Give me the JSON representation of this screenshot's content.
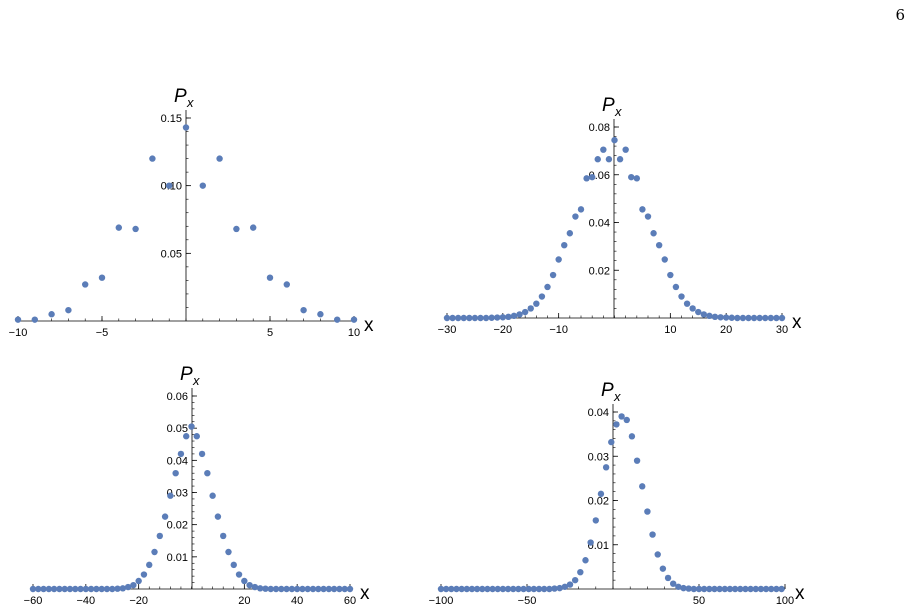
{
  "page_number": "6",
  "chart_data": [
    {
      "type": "scatter",
      "xlabel": "x",
      "ylabel": "P",
      "ylabel_subscript": "x",
      "color": "#5b7db8",
      "xlim": [
        -10,
        10
      ],
      "ylim": [
        0,
        0.15
      ],
      "x_ticks": [
        -10,
        -5,
        5,
        10
      ],
      "x_tick_labels": [
        "−10",
        "−5",
        "5",
        "10"
      ],
      "y_ticks": [
        0.05,
        0.1,
        0.15
      ],
      "y_tick_labels": [
        "0.05",
        "0.10",
        "0.15"
      ],
      "x": [
        -10,
        -9,
        -8,
        -7,
        -6,
        -5,
        -4,
        -3,
        -2,
        -1,
        0,
        1,
        2,
        3,
        4,
        5,
        6,
        7,
        8,
        9,
        10
      ],
      "y": [
        0.001,
        0.001,
        0.005,
        0.008,
        0.027,
        0.032,
        0.069,
        0.068,
        0.12,
        0.1,
        0.143,
        0.1,
        0.12,
        0.068,
        0.069,
        0.032,
        0.027,
        0.008,
        0.005,
        0.001,
        0.001
      ]
    },
    {
      "type": "scatter",
      "xlabel": "x",
      "ylabel": "P",
      "ylabel_subscript": "x",
      "color": "#5b7db8",
      "xlim": [
        -30,
        30
      ],
      "ylim": [
        0,
        0.08
      ],
      "x_ticks": [
        -30,
        -20,
        -10,
        10,
        20,
        30
      ],
      "x_tick_labels": [
        "−30",
        "−20",
        "−10",
        "10",
        "20",
        "30"
      ],
      "y_ticks": [
        0.02,
        0.04,
        0.06,
        0.08
      ],
      "y_tick_labels": [
        "0.02",
        "0.04",
        "0.06",
        "0.08"
      ],
      "x": [
        -30,
        -29,
        -28,
        -27,
        -26,
        -25,
        -24,
        -23,
        -22,
        -21,
        -20,
        -19,
        -18,
        -17,
        -16,
        -15,
        -14,
        -13,
        -12,
        -11,
        -10,
        -9,
        -8,
        -7,
        -6,
        -5,
        -4,
        -3,
        -2,
        -1,
        0,
        1,
        2,
        3,
        4,
        5,
        6,
        7,
        8,
        9,
        10,
        11,
        12,
        13,
        14,
        15,
        16,
        17,
        18,
        19,
        20,
        21,
        22,
        23,
        24,
        25,
        26,
        27,
        28,
        29,
        30
      ],
      "y": [
        0,
        0,
        0,
        0,
        0,
        0,
        0,
        0,
        0.0001,
        0.0002,
        0.0003,
        0.0005,
        0.0009,
        0.0015,
        0.0025,
        0.004,
        0.006,
        0.009,
        0.013,
        0.018,
        0.0245,
        0.0305,
        0.0355,
        0.0425,
        0.0455,
        0.0585,
        0.059,
        0.0665,
        0.0705,
        0.0665,
        0.0745,
        0.0665,
        0.0705,
        0.059,
        0.0585,
        0.0455,
        0.0425,
        0.0355,
        0.0305,
        0.0245,
        0.018,
        0.013,
        0.009,
        0.006,
        0.004,
        0.0025,
        0.0015,
        0.0009,
        0.0005,
        0.0003,
        0.0002,
        0.0001,
        0,
        0,
        0,
        0,
        0,
        0,
        0,
        0,
        0
      ]
    },
    {
      "type": "scatter",
      "xlabel": "x",
      "ylabel": "P",
      "ylabel_subscript": "x",
      "color": "#5b7db8",
      "xlim": [
        -60,
        60
      ],
      "ylim": [
        0,
        0.06
      ],
      "x_ticks": [
        -60,
        -40,
        -20,
        20,
        40,
        60
      ],
      "x_tick_labels": [
        "−60",
        "−40",
        "−20",
        "20",
        "40",
        "60"
      ],
      "y_ticks": [
        0.01,
        0.02,
        0.03,
        0.04,
        0.05,
        0.06
      ],
      "y_tick_labels": [
        "0.01",
        "0.02",
        "0.03",
        "0.04",
        "0.05",
        "0.06"
      ],
      "x": [
        -60,
        -58,
        -56,
        -54,
        -52,
        -50,
        -48,
        -46,
        -44,
        -42,
        -40,
        -38,
        -36,
        -34,
        -32,
        -30,
        -28,
        -26,
        -24,
        -22,
        -20,
        -18,
        -16,
        -14,
        -12,
        -10,
        -8,
        -6,
        -4,
        -2,
        0,
        2,
        4,
        6,
        8,
        10,
        12,
        14,
        16,
        18,
        20,
        22,
        24,
        26,
        28,
        30,
        32,
        34,
        36,
        38,
        40,
        42,
        44,
        46,
        48,
        50,
        52,
        54,
        56,
        58,
        60
      ],
      "y": [
        0,
        0,
        0,
        0,
        0,
        0,
        0,
        0,
        0,
        0,
        0,
        0,
        0,
        0,
        0,
        0,
        0.0001,
        0.0002,
        0.0006,
        0.0012,
        0.0025,
        0.0045,
        0.0075,
        0.0115,
        0.0165,
        0.0225,
        0.029,
        0.036,
        0.042,
        0.0475,
        0.0505,
        0.0475,
        0.042,
        0.036,
        0.029,
        0.0225,
        0.0165,
        0.0115,
        0.0075,
        0.0045,
        0.0025,
        0.0012,
        0.0006,
        0.0002,
        0.0001,
        0,
        0,
        0,
        0,
        0,
        0,
        0,
        0,
        0,
        0,
        0,
        0,
        0,
        0,
        0,
        0
      ]
    },
    {
      "type": "scatter",
      "xlabel": "x",
      "ylabel": "P",
      "ylabel_subscript": "x",
      "color": "#5b7db8",
      "xlim": [
        -100,
        100
      ],
      "ylim": [
        0,
        0.04
      ],
      "x_ticks": [
        -100,
        -50,
        50,
        100
      ],
      "x_tick_labels": [
        "−100",
        "−50",
        "50",
        "100"
      ],
      "y_ticks": [
        0.01,
        0.02,
        0.03,
        0.04
      ],
      "y_tick_labels": [
        "0.01",
        "0.02",
        "0.03",
        "0.04"
      ],
      "x": [
        -100,
        -97,
        -94,
        -91,
        -88,
        -85,
        -82,
        -79,
        -76,
        -73,
        -70,
        -67,
        -64,
        -61,
        -58,
        -55,
        -52,
        -49,
        -46,
        -43,
        -40,
        -37,
        -34,
        -31,
        -28,
        -25,
        -22,
        -19,
        -16,
        -13,
        -10,
        -7,
        -4,
        -1,
        2,
        5,
        8,
        11,
        14,
        17,
        20,
        23,
        26,
        29,
        32,
        35,
        38,
        41,
        44,
        47,
        50,
        53,
        56,
        59,
        62,
        65,
        68,
        71,
        74,
        77,
        80,
        83,
        86,
        89,
        92,
        95,
        98
      ],
      "y": [
        0,
        0,
        0,
        0,
        0,
        0,
        0,
        0,
        0,
        0,
        0,
        0,
        0,
        0,
        0,
        0,
        0,
        0,
        0,
        0,
        0,
        0,
        0.0001,
        0.0002,
        0.0005,
        0.001,
        0.002,
        0.0038,
        0.0065,
        0.0105,
        0.0155,
        0.0215,
        0.0275,
        0.0332,
        0.0372,
        0.039,
        0.0382,
        0.0345,
        0.029,
        0.0232,
        0.0175,
        0.0123,
        0.0078,
        0.0046,
        0.0025,
        0.0012,
        0.0005,
        0.0002,
        0.0001,
        0,
        0,
        0,
        0,
        0,
        0,
        0,
        0,
        0,
        0,
        0,
        0,
        0,
        0,
        0,
        0,
        0,
        0
      ]
    }
  ]
}
